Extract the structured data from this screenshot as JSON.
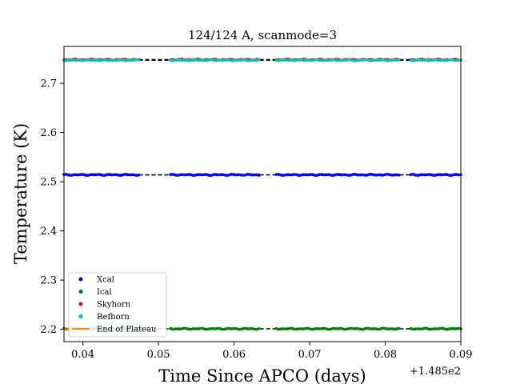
{
  "chart_data": {
    "type": "scatter",
    "title": "124/124 A, scanmode=3",
    "xlabel": "Time Since APCO (days)",
    "ylabel": "Temperature (K)",
    "x_offset_label": "+1.485e2",
    "x_offset": 148.5,
    "xlim": [
      0.0375,
      0.09
    ],
    "ylim": [
      2.175,
      2.775
    ],
    "x_ticks": [
      0.04,
      0.05,
      0.06,
      0.07,
      0.08,
      0.09
    ],
    "x_tick_labels": [
      "0.04",
      "0.05",
      "0.06",
      "0.07",
      "0.08",
      "0.09"
    ],
    "y_ticks": [
      2.2,
      2.3,
      2.4,
      2.5,
      2.6,
      2.7
    ],
    "y_tick_labels": [
      "2.2",
      "2.3",
      "2.4",
      "2.5",
      "2.6",
      "2.7"
    ],
    "grid": false,
    "legend_position": "lower-left",
    "segments": [
      [
        0.0375,
        0.0474
      ],
      [
        0.0516,
        0.0634
      ],
      [
        0.0656,
        0.0819
      ],
      [
        0.0834,
        0.09
      ]
    ],
    "gap_line_color": "#000000",
    "series": [
      {
        "name": "Xcal",
        "color": "#0000ff",
        "marker": "dot",
        "level": 2.514
      },
      {
        "name": "Ical",
        "color": "#008000",
        "marker": "dot",
        "level": 2.201
      },
      {
        "name": "Skyhorn",
        "color": "#ff0000",
        "marker": "dot",
        "level": 2.748
      },
      {
        "name": "Refhorn",
        "color": "#00bfbf",
        "marker": "dot",
        "level": 2.747
      },
      {
        "name": "End of Plateau",
        "color": "#ff8c00",
        "marker": "line",
        "x": [
          0.0375,
          0.0394
        ],
        "y": [
          2.2,
          2.201
        ]
      }
    ]
  }
}
